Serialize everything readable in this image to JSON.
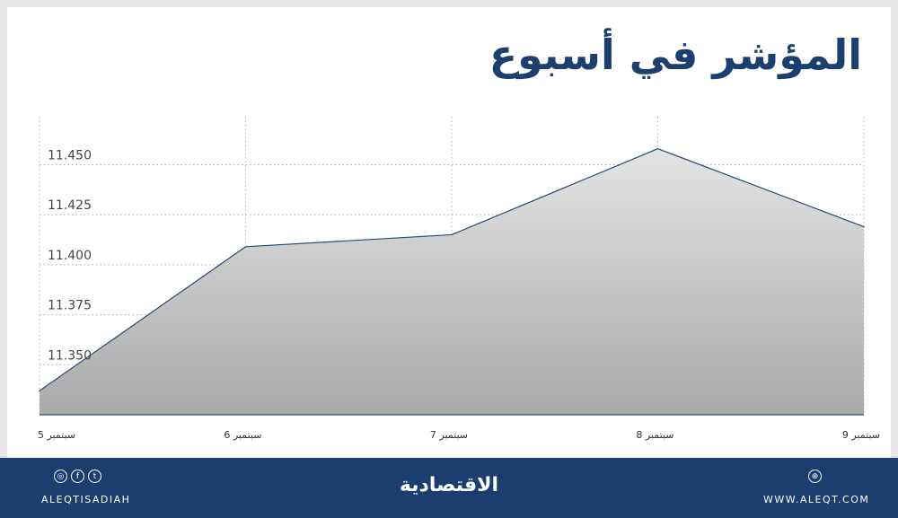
{
  "title": "المؤشر في أسبوع",
  "chart_data": {
    "type": "area",
    "title": "المؤشر في أسبوع",
    "categories": [
      "5 سبتمبر",
      "6 سبتمبر",
      "7 سبتمبر",
      "8 سبتمبر",
      "9 سبتمبر"
    ],
    "values": [
      11.337,
      11.409,
      11.415,
      11.458,
      11.419
    ],
    "yticks": [
      "11.350",
      "11.375",
      "11.400",
      "11.425",
      "11.450"
    ],
    "ylim": [
      11.325,
      11.474
    ],
    "grid": true,
    "line_color": "#2b4a72",
    "fill_top": "#e4e4e4",
    "fill_bottom": "#a9a9ab"
  },
  "footer": {
    "social_handle": "ALEQTISADIAH",
    "website": "WWW.ALEQT.COM",
    "logo": "الاقتصادية",
    "social_icons": [
      "instagram-icon",
      "facebook-icon",
      "twitter-icon"
    ],
    "web_icon": "globe-icon",
    "bg_color": "#1b3e6f"
  }
}
